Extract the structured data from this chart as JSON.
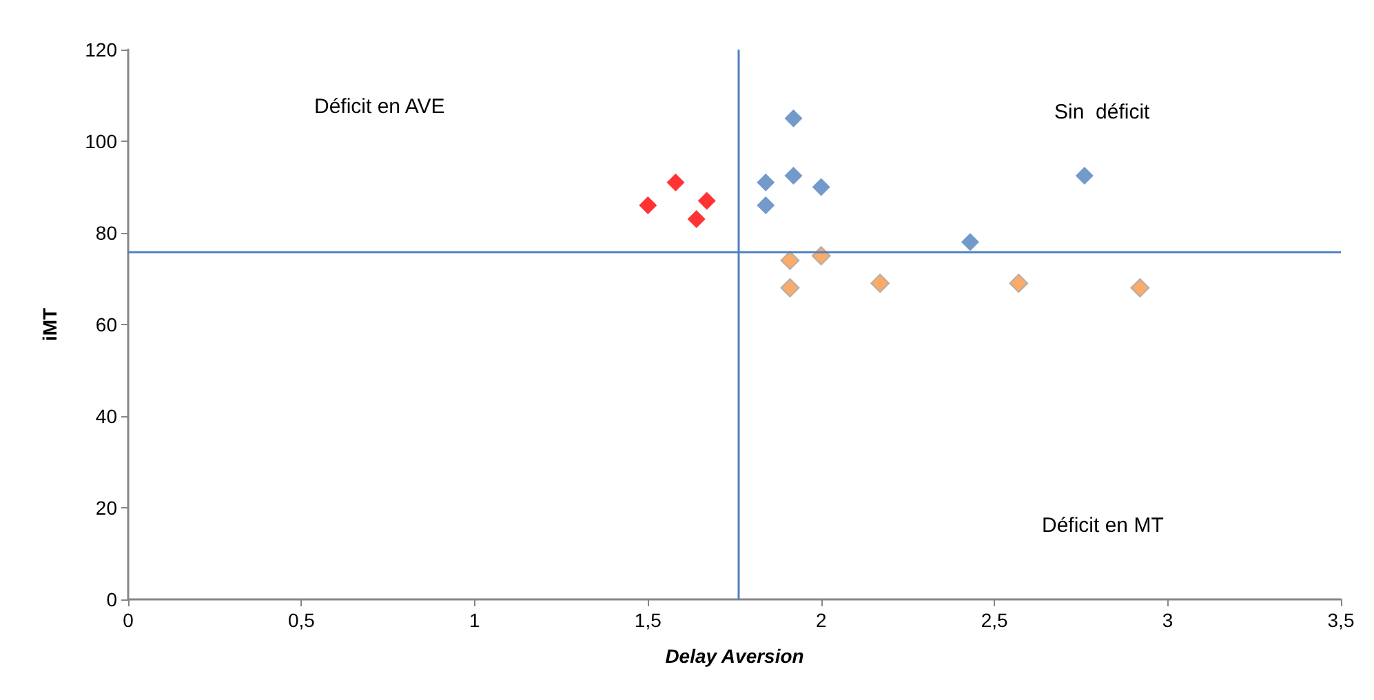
{
  "chart_data": {
    "type": "scatter",
    "xlabel": "Delay Aversion",
    "ylabel": "iMT",
    "xlim": [
      0,
      3.5
    ],
    "xticks": [
      0,
      {
        "value": 0.5,
        "label": "0,5"
      },
      1,
      {
        "value": 1.5,
        "label": "1,5"
      },
      2,
      {
        "value": 2.5,
        "label": "2,5"
      },
      3,
      {
        "value": 3.5,
        "label": "3,5"
      }
    ],
    "ylim": [
      0,
      120
    ],
    "yticks": [
      0,
      20,
      40,
      60,
      80,
      100,
      120
    ],
    "grid": false,
    "marker": "diamond",
    "series": [
      {
        "color": "#4f81bd",
        "x": [
          1.92,
          1.92,
          1.84,
          1.84,
          2.0,
          2.43,
          2.76
        ],
        "values": [
          105,
          92.5,
          91,
          86,
          90,
          78,
          92.5
        ]
      },
      {
        "color": "#ff0000",
        "x": [
          1.5,
          1.58,
          1.67,
          1.64
        ],
        "values": [
          86,
          91,
          87,
          83
        ]
      },
      {
        "color": "#f79646",
        "x": [
          1.91,
          2.0,
          1.91,
          2.17,
          2.57,
          2.92
        ],
        "values": [
          74,
          75,
          68,
          69,
          69,
          68
        ]
      }
    ],
    "ref_lines": [
      {
        "axis": "x",
        "value": 1.76,
        "color": "#4f81bd"
      },
      {
        "axis": "y",
        "value": 76,
        "color": "#4f81bd"
      }
    ],
    "annotations": [
      "Déficit en AVE",
      "Sin  déficit",
      "Déficit en MT"
    ]
  }
}
